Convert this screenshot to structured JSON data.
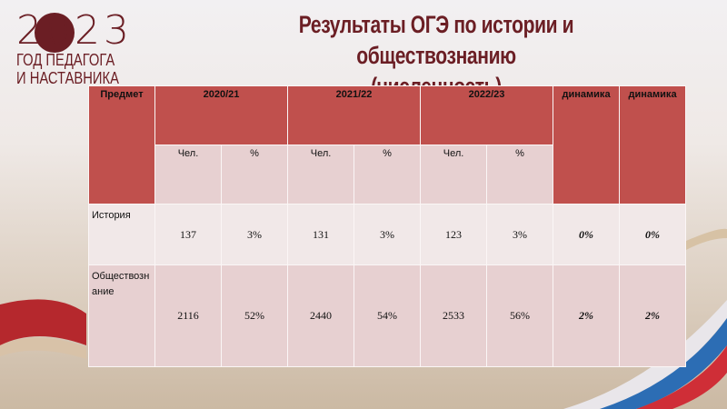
{
  "logo": {
    "year": "2023",
    "text_line1": "ГОД ПЕДАГОГА",
    "text_line2": "И НАСТАВНИКА"
  },
  "title": {
    "line1": "Результаты ОГЭ по истории и обществознанию",
    "line2": "(численность)"
  },
  "table": {
    "header": {
      "subject": "Предмет",
      "years": [
        "2020/21",
        "2021/22",
        "2022/23"
      ],
      "dynamics": [
        "динамика",
        "динамика"
      ],
      "sub": [
        "Чел.",
        "%"
      ]
    },
    "rows": [
      {
        "subject": "История",
        "values": [
          "137",
          "3%",
          "131",
          "3%",
          "123",
          "3%"
        ],
        "dynamics": [
          "0%",
          "0%"
        ]
      },
      {
        "subject": "Обществознание",
        "values": [
          "2116",
          "52%",
          "2440",
          "54%",
          "2533",
          "56%"
        ],
        "dynamics": [
          "2%",
          "2%"
        ]
      }
    ]
  },
  "colors": {
    "header": "#c0504d",
    "title": "#6b1e24"
  }
}
